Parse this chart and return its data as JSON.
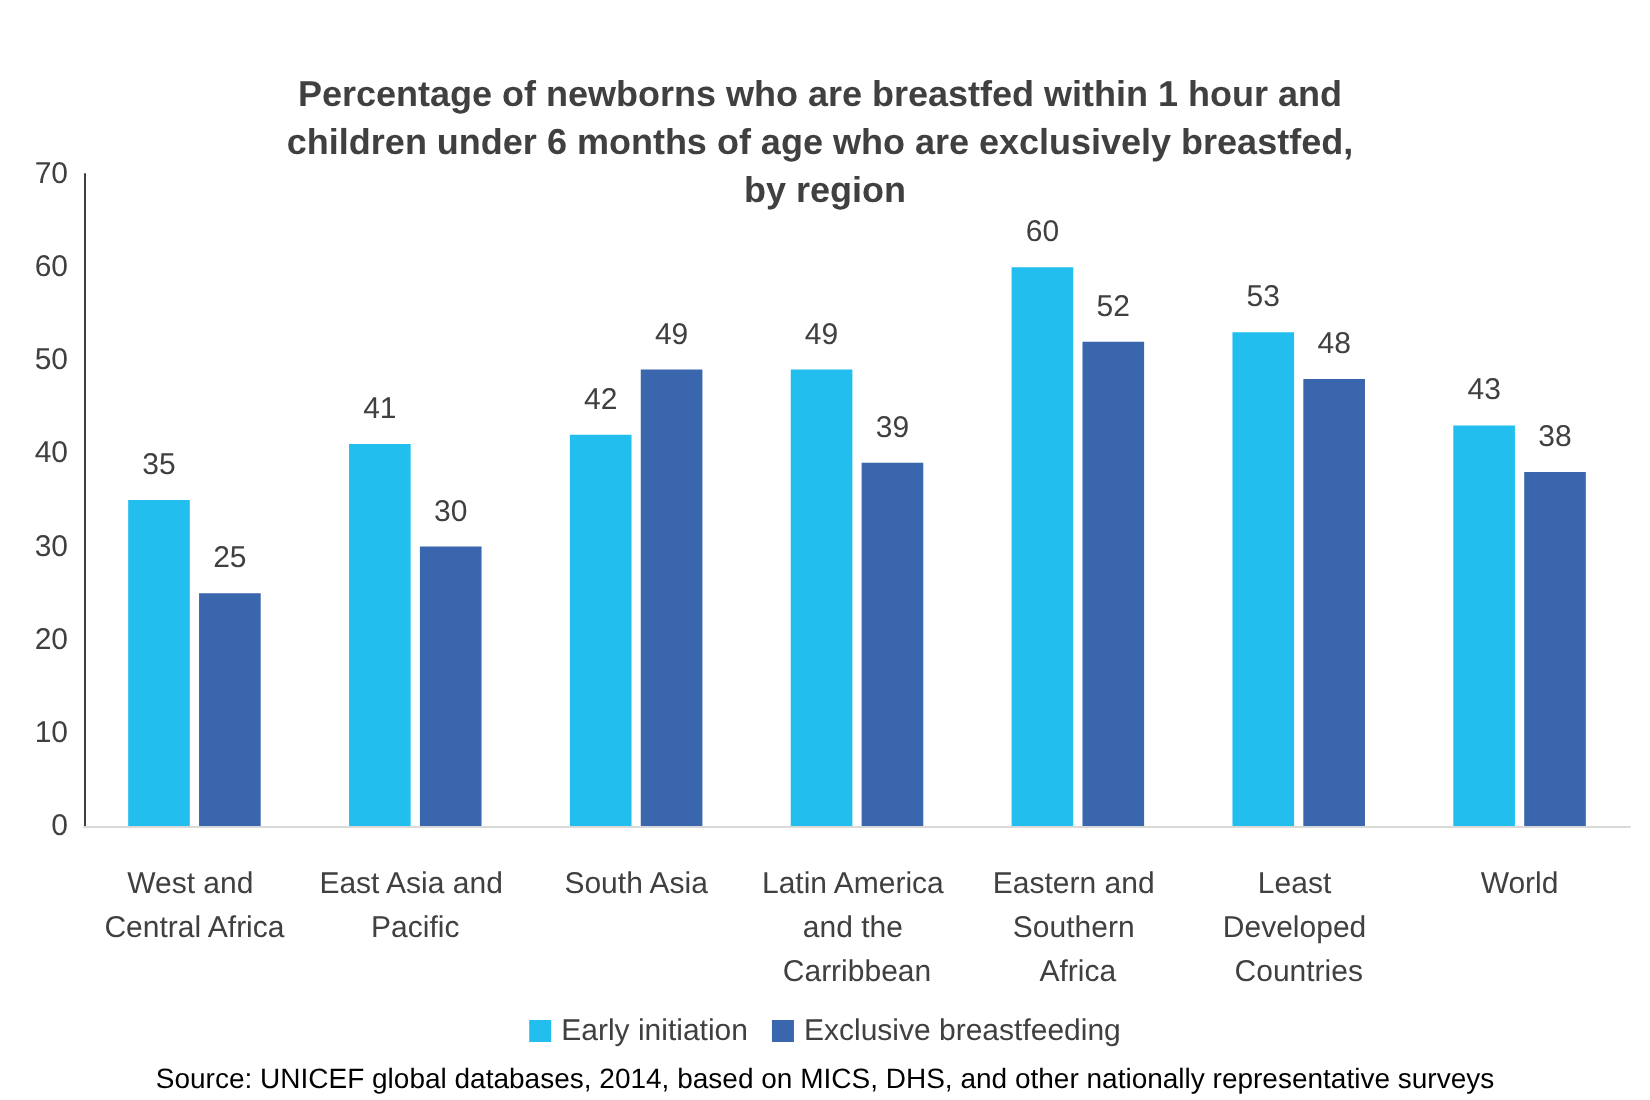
{
  "chart_data": {
    "type": "bar",
    "title": "Percentage of newborns who are breastfed within 1 hour and children under 6 months of age who are exclusively breastfed, by region",
    "categories": [
      "West and Central Africa",
      "East Asia and Pacific",
      "South Asia",
      "Latin America and the Carribbean",
      "Eastern and Southern Africa",
      "Least Developed Countries",
      "World"
    ],
    "series": [
      {
        "name": "Early initiation",
        "color": "#22bfee",
        "values": [
          35,
          41,
          42,
          49,
          60,
          53,
          43
        ]
      },
      {
        "name": "Exclusive breastfeeding",
        "color": "#3a66ad",
        "values": [
          25,
          30,
          49,
          39,
          52,
          48,
          38
        ]
      }
    ],
    "ylim": [
      0,
      70
    ],
    "yticks": [
      0,
      10,
      20,
      30,
      40,
      50,
      60,
      70
    ],
    "grid": false,
    "legend": "bottom",
    "data_labels": true,
    "annotations": [
      "Source: UNICEF global databases, 2014, based on MICS, DHS, and other nationally representative surveys"
    ]
  }
}
